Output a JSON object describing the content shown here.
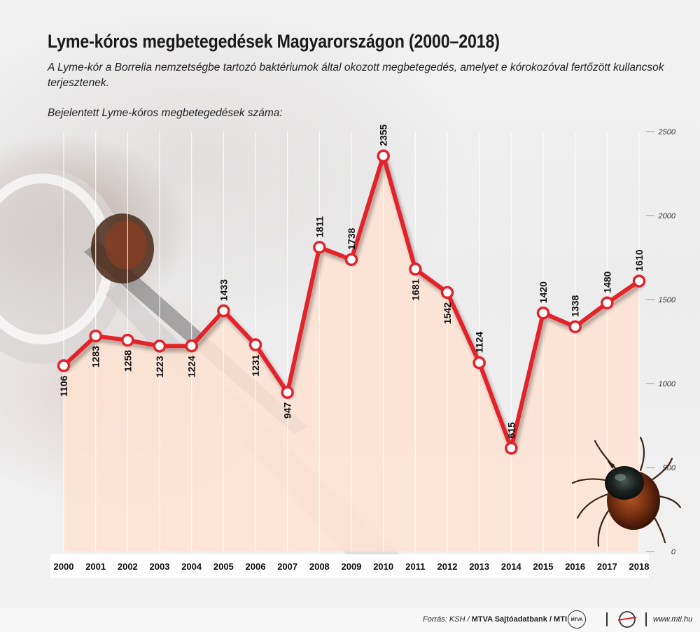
{
  "title": "Lyme-kóros megbetegedések Magyarországon (2000–2018)",
  "subtitle": "A Lyme-kór a Borrelia nemzetségbe tartozó baktériumok által okozott megbetegedés, amelyet e kórokozóval fertőzött kullancsok terjesztenek.",
  "series_label": "Bejelentett Lyme-kóros megbetegedések száma:",
  "footer": {
    "source_prefix": "Forrás: KSH / ",
    "source_brand": "MTVA Sajtóadatbank",
    "source_suffix": " / MTI",
    "logo_mtva_text": "MTVA",
    "url": "www.mti.hu"
  },
  "colors": {
    "line": "#e3222b",
    "area": "#fde3d3",
    "marker_fill": "#ffffff"
  },
  "icons": [
    "tick-illustration",
    "tweezers-photo-background",
    "mtva-logo-icon",
    "mti-logo-icon"
  ],
  "chart_data": {
    "type": "line",
    "categories": [
      "2000",
      "2001",
      "2002",
      "2003",
      "2004",
      "2005",
      "2006",
      "2007",
      "2008",
      "2009",
      "2010",
      "2011",
      "2012",
      "2013",
      "2014",
      "2015",
      "2016",
      "2017",
      "2018"
    ],
    "values": [
      1106,
      1283,
      1258,
      1223,
      1224,
      1433,
      1231,
      947,
      1811,
      1738,
      2355,
      1681,
      1542,
      1124,
      615,
      1420,
      1338,
      1480,
      1610
    ],
    "value_labels": [
      "1106",
      "1283",
      "1258",
      "1223",
      "1224",
      "1433",
      "1231",
      "947",
      "1811",
      "1738",
      "2355",
      "1681",
      "1542",
      "1124",
      "615",
      "1420",
      "1338",
      "1480",
      "1610"
    ],
    "label_position": [
      "below",
      "below",
      "below",
      "below",
      "below",
      "above",
      "below",
      "below",
      "above",
      "above",
      "above",
      "below",
      "below",
      "above",
      "above",
      "above",
      "above",
      "above",
      "above"
    ],
    "ylim": [
      0,
      2500
    ],
    "yticks": [
      0,
      500,
      1000,
      1500,
      2000,
      2500
    ],
    "ytick_labels": [
      "0",
      "500",
      "1000",
      "1500",
      "2000",
      "2500"
    ],
    "grid": "vertical",
    "y_axis_side": "right",
    "filled_area": true
  }
}
